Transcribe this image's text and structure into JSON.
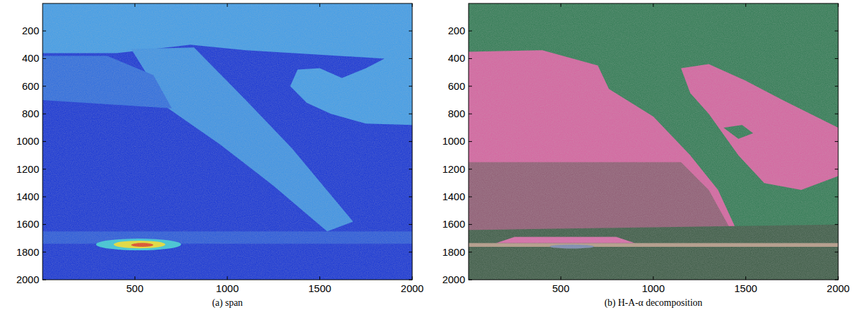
{
  "chart_data": [
    {
      "type": "image",
      "title": "(a) span",
      "xlim": [
        1,
        2000
      ],
      "ylim": [
        1,
        2000
      ],
      "xticks": [
        500,
        1000,
        1500,
        2000
      ],
      "yticks": [
        200,
        400,
        600,
        800,
        1000,
        1200,
        1400,
        1600,
        1800,
        2000
      ],
      "background": "#1433d6",
      "regions": [
        {
          "color": "#3e9ce9",
          "points": [
            [
              1,
              1
            ],
            [
              2000,
              1
            ],
            [
              2000,
              880
            ],
            [
              1750,
              870
            ],
            [
              1560,
              800
            ],
            [
              1430,
              720
            ],
            [
              1340,
              600
            ],
            [
              1380,
              480
            ],
            [
              1500,
              470
            ],
            [
              1620,
              540
            ],
            [
              1750,
              470
            ],
            [
              1850,
              400
            ],
            [
              1100,
              340
            ],
            [
              800,
              300
            ],
            [
              400,
              360
            ],
            [
              1,
              360
            ]
          ]
        },
        {
          "color": "#3a92e6",
          "points": [
            [
              480,
              330
            ],
            [
              820,
              320
            ],
            [
              1100,
              700
            ],
            [
              1350,
              1050
            ],
            [
              1680,
              1580
            ],
            [
              1540,
              1650
            ],
            [
              1250,
              1320
            ],
            [
              960,
              1020
            ],
            [
              680,
              760
            ]
          ]
        },
        {
          "color": "#2a6be0",
          "points": [
            [
              1,
              380
            ],
            [
              350,
              380
            ],
            [
              600,
              520
            ],
            [
              700,
              760
            ],
            [
              1,
              700
            ]
          ]
        },
        {
          "color": "#2557dc",
          "points": [
            [
              1,
              1650
            ],
            [
              2000,
              1650
            ],
            [
              2000,
              1740
            ],
            [
              1,
              1740
            ]
          ]
        }
      ],
      "ellipses": [
        {
          "color": "#38c8d8",
          "cx": 520,
          "cy": 1745,
          "rx": 230,
          "ry": 42
        },
        {
          "color": "#e8e030",
          "cx": 525,
          "cy": 1745,
          "rx": 140,
          "ry": 28
        },
        {
          "color": "#e04a20",
          "cx": 540,
          "cy": 1748,
          "rx": 60,
          "ry": 14
        }
      ]
    },
    {
      "type": "image",
      "title": "(b) H-A-α decomposition",
      "xlim": [
        1,
        2000
      ],
      "ylim": [
        1,
        2000
      ],
      "xticks": [
        500,
        1000,
        1500,
        2000
      ],
      "yticks": [
        200,
        400,
        600,
        800,
        1000,
        1200,
        1400,
        1600,
        1800,
        2000
      ],
      "background": "#2f7a52",
      "regions": [
        {
          "color": "#d6629f",
          "points": [
            [
              1,
              350
            ],
            [
              400,
              340
            ],
            [
              700,
              450
            ],
            [
              760,
              620
            ],
            [
              1000,
              820
            ],
            [
              1200,
              1100
            ],
            [
              1350,
              1350
            ],
            [
              1450,
              1640
            ],
            [
              1,
              1640
            ]
          ]
        },
        {
          "color": "#8f5a72",
          "points": [
            [
              1,
              1150
            ],
            [
              1150,
              1150
            ],
            [
              1300,
              1350
            ],
            [
              1420,
              1640
            ],
            [
              1,
              1640
            ]
          ]
        },
        {
          "color": "#d6629f",
          "points": [
            [
              1150,
              470
            ],
            [
              1300,
              440
            ],
            [
              1500,
              560
            ],
            [
              1700,
              700
            ],
            [
              2000,
              900
            ],
            [
              2000,
              1250
            ],
            [
              1800,
              1350
            ],
            [
              1600,
              1300
            ],
            [
              1460,
              1100
            ],
            [
              1300,
              800
            ],
            [
              1200,
              650
            ]
          ]
        },
        {
          "color": "#2f7a52",
          "points": [
            [
              1380,
              900
            ],
            [
              1480,
              880
            ],
            [
              1540,
              940
            ],
            [
              1460,
              980
            ]
          ]
        },
        {
          "color": "#3b5a44",
          "points": [
            [
              1,
              1640
            ],
            [
              2000,
              1600
            ],
            [
              2000,
              2000
            ],
            [
              1,
              2000
            ]
          ]
        },
        {
          "color": "#b59a86",
          "points": [
            [
              1,
              1735
            ],
            [
              2000,
              1735
            ],
            [
              2000,
              1762
            ],
            [
              1,
              1762
            ]
          ]
        },
        {
          "color": "#d86aa6",
          "points": [
            [
              250,
              1690
            ],
            [
              800,
              1690
            ],
            [
              900,
              1735
            ],
            [
              150,
              1735
            ]
          ]
        }
      ],
      "ellipses": [
        {
          "color": "#7a8ab0",
          "cx": 560,
          "cy": 1760,
          "rx": 120,
          "ry": 14
        }
      ]
    }
  ]
}
